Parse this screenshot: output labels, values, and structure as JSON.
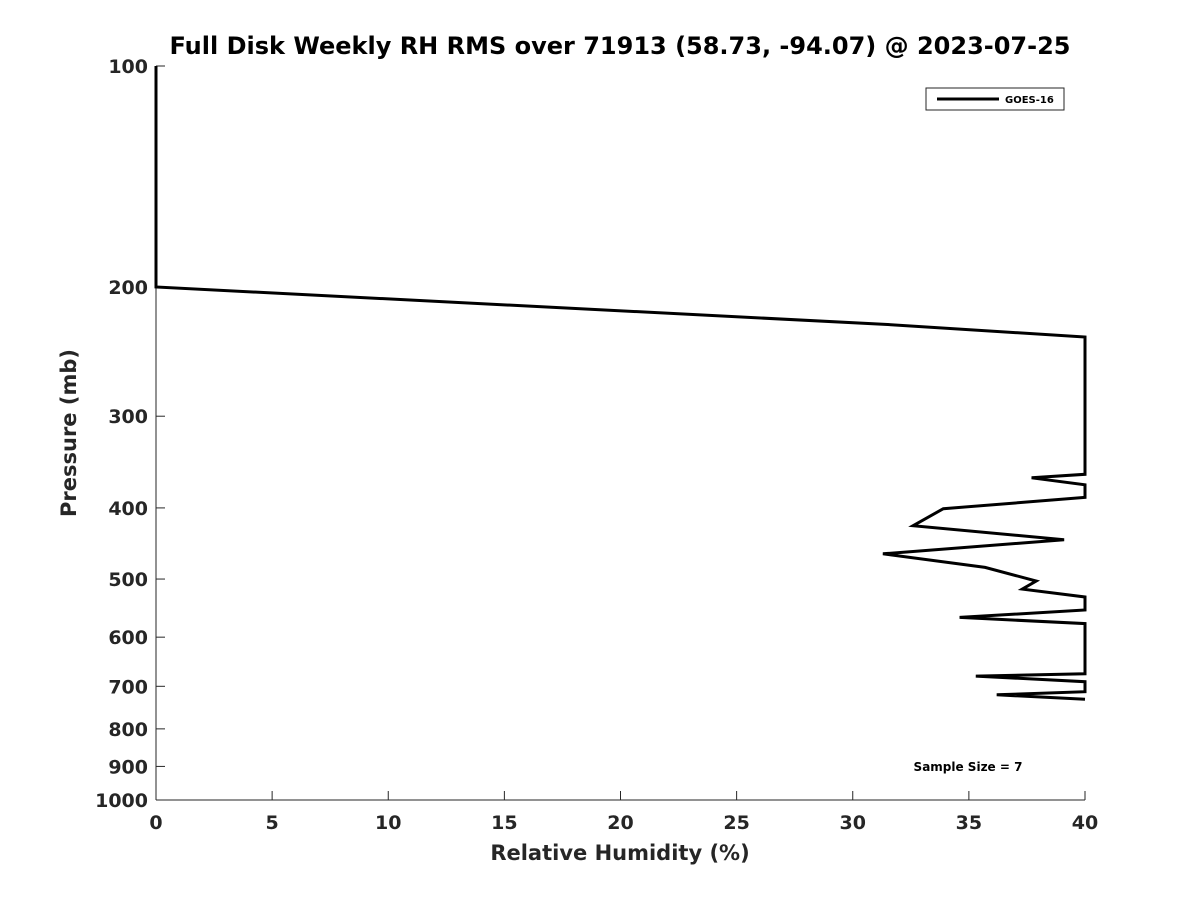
{
  "chart_data": {
    "type": "line",
    "title": "Full Disk Weekly RH RMS over 71913 (58.73, -94.07) @ 2023-07-25",
    "xlabel": "Relative Humidity (%)",
    "ylabel": "Pressure (mb)",
    "xlim": [
      0,
      40
    ],
    "ylim": [
      100,
      1000
    ],
    "yscale": "log",
    "yreversed": true,
    "grid": false,
    "legend_position": "top-right",
    "x_ticks": [
      0,
      5,
      10,
      15,
      20,
      25,
      30,
      35,
      40
    ],
    "y_ticks": [
      100,
      200,
      300,
      400,
      500,
      600,
      700,
      800,
      900,
      1000
    ],
    "series": [
      {
        "name": "GOES-16",
        "color": "#000000",
        "points": [
          {
            "x": 0.0,
            "y": 100
          },
          {
            "x": 0.0,
            "y": 125
          },
          {
            "x": 0.0,
            "y": 150
          },
          {
            "x": 0.0,
            "y": 200
          },
          {
            "x": 31.5,
            "y": 225
          },
          {
            "x": 40.0,
            "y": 234
          },
          {
            "x": 40.0,
            "y": 360
          },
          {
            "x": 37.7,
            "y": 364
          },
          {
            "x": 40.0,
            "y": 372
          },
          {
            "x": 40.0,
            "y": 387
          },
          {
            "x": 33.9,
            "y": 401
          },
          {
            "x": 32.6,
            "y": 423
          },
          {
            "x": 39.1,
            "y": 442
          },
          {
            "x": 31.3,
            "y": 462
          },
          {
            "x": 35.7,
            "y": 482
          },
          {
            "x": 37.9,
            "y": 503
          },
          {
            "x": 37.3,
            "y": 516
          },
          {
            "x": 40.0,
            "y": 529
          },
          {
            "x": 40.0,
            "y": 551
          },
          {
            "x": 34.6,
            "y": 564
          },
          {
            "x": 40.0,
            "y": 575
          },
          {
            "x": 40.0,
            "y": 673
          },
          {
            "x": 35.3,
            "y": 678
          },
          {
            "x": 40.0,
            "y": 690
          },
          {
            "x": 40.0,
            "y": 712
          },
          {
            "x": 36.2,
            "y": 719
          },
          {
            "x": 40.0,
            "y": 729
          }
        ]
      }
    ],
    "annotations": [
      {
        "text": "Sample Size = 7"
      }
    ]
  }
}
